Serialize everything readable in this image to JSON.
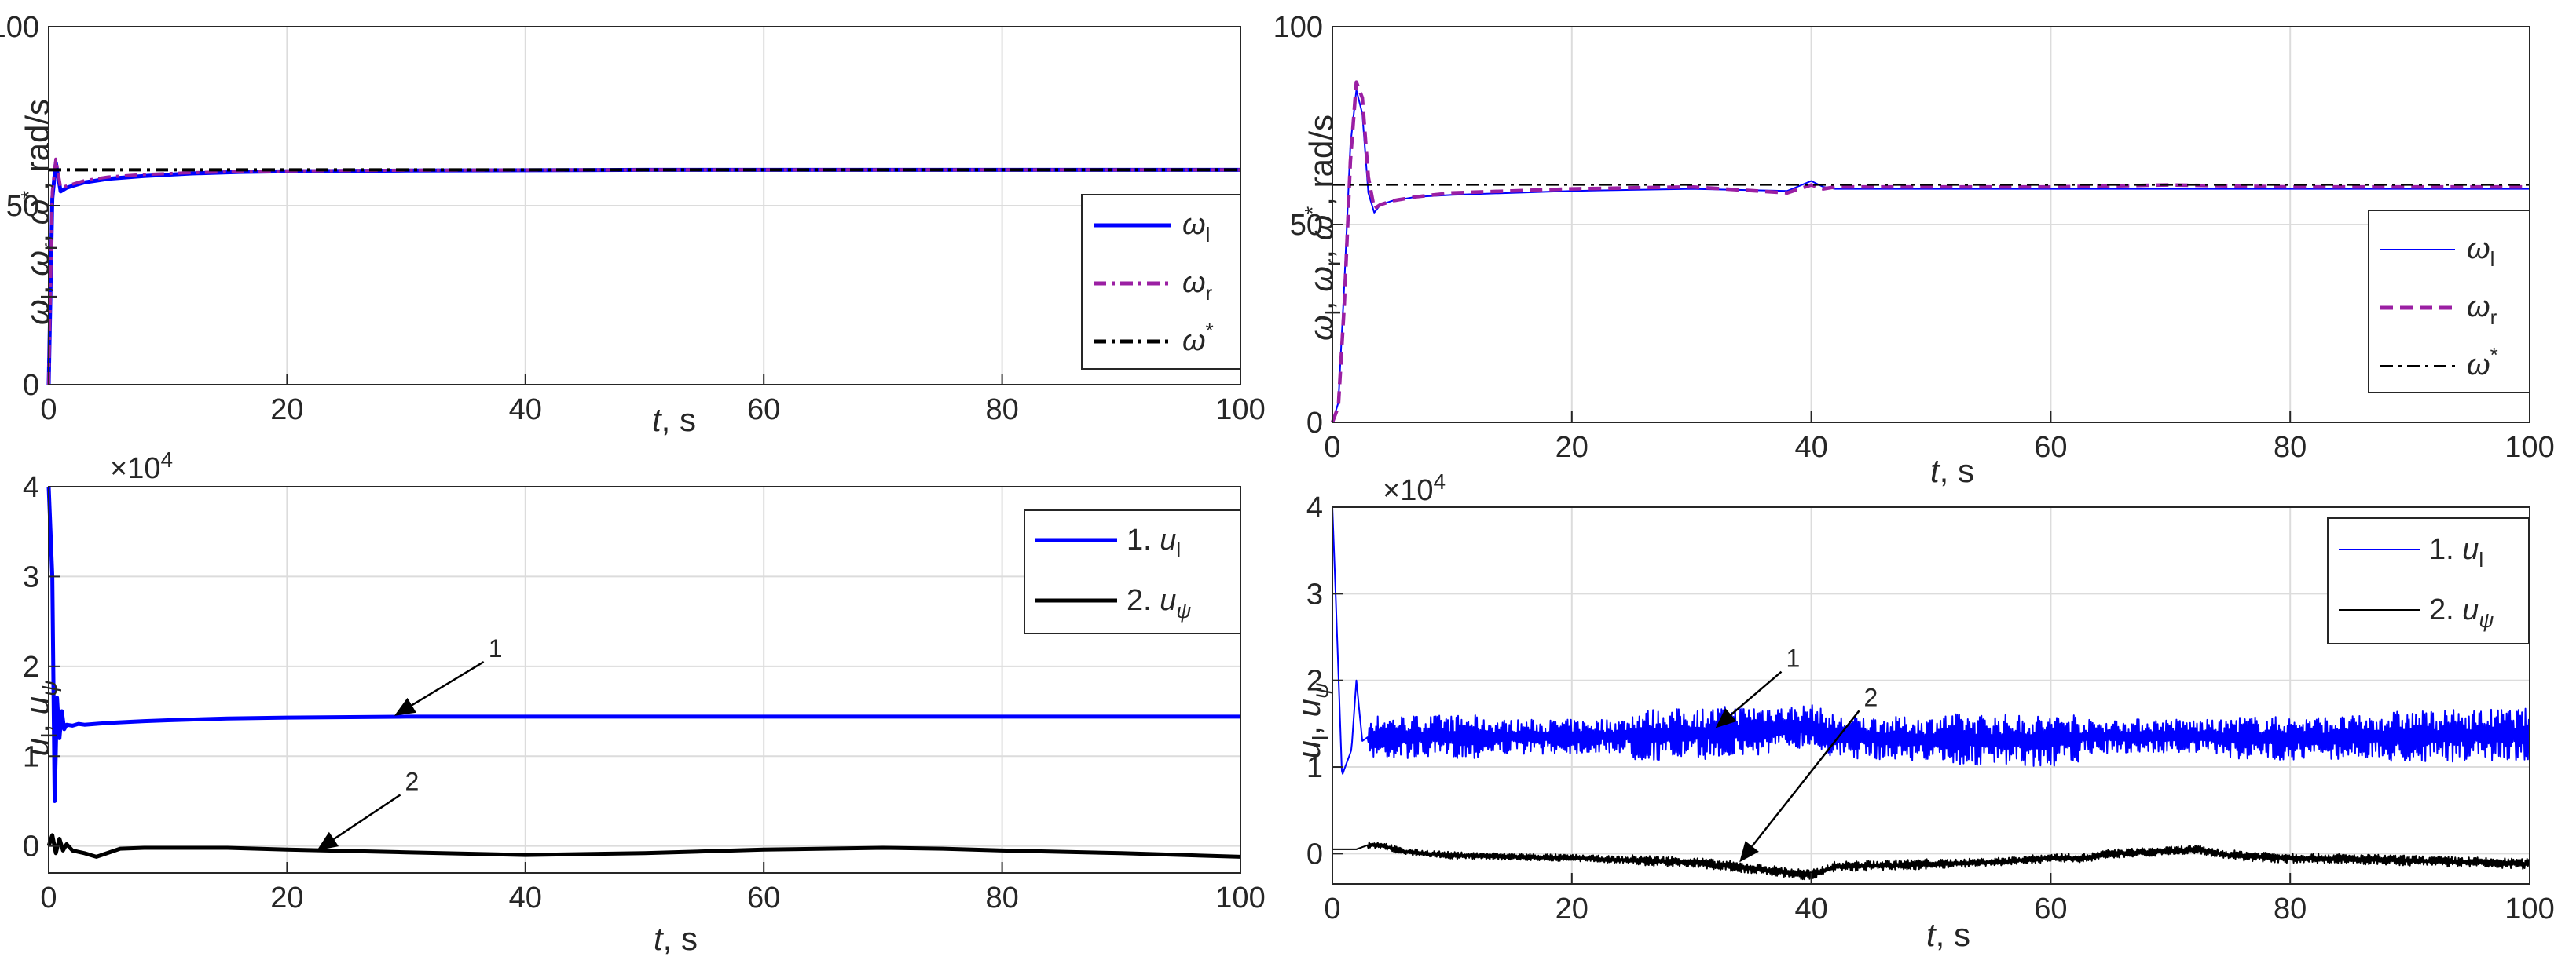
{
  "colors": {
    "blue": "#0000ff",
    "purple": "#9b1fa3",
    "black": "#000000",
    "grid": "#dcdcdc",
    "axis": "#262626"
  },
  "chart_data": [
    {
      "type": "line",
      "panel": "top-left",
      "xlabel": "t, s",
      "ylabel": "ω_l, ω_r, ω*, rad/s",
      "xlim": [
        0,
        100
      ],
      "ylim": [
        0,
        100
      ],
      "xticks": [
        "0",
        "20",
        "40",
        "60",
        "80",
        "100"
      ],
      "yticks": [
        "0",
        "50",
        "100"
      ],
      "grid": true,
      "legend_position": "right",
      "series": [
        {
          "name": "ω_l",
          "style": "solid",
          "color": "#0000ff",
          "x": [
            0,
            0.3,
            0.6,
            1,
            1.5,
            2,
            3,
            5,
            8,
            12,
            16,
            20,
            30,
            50,
            100
          ],
          "y": [
            0,
            52,
            62,
            54,
            55,
            55.5,
            56.5,
            57.5,
            58.3,
            59,
            59.4,
            59.6,
            59.8,
            60,
            60
          ]
        },
        {
          "name": "ω_r",
          "style": "dashdot",
          "color": "#9b1fa3",
          "x": [
            0,
            0.3,
            0.6,
            1,
            1.5,
            2,
            3,
            5,
            8,
            12,
            16,
            20,
            30,
            50,
            100
          ],
          "y": [
            0,
            54,
            63,
            55,
            55.5,
            56,
            57,
            58,
            58.7,
            59.2,
            59.5,
            59.7,
            59.9,
            60,
            60
          ]
        },
        {
          "name": "ω*",
          "style": "dashdot",
          "color": "#000000",
          "x": [
            0,
            100
          ],
          "y": [
            60,
            60
          ]
        }
      ]
    },
    {
      "type": "line",
      "panel": "top-right",
      "xlabel": "t, s",
      "ylabel": "ω_l, ω_r, ω*, rad/s",
      "xlim": [
        0,
        100
      ],
      "ylim": [
        0,
        100
      ],
      "xticks": [
        "0",
        "20",
        "40",
        "60",
        "80",
        "100"
      ],
      "yticks": [
        "0",
        "50",
        "100"
      ],
      "grid": true,
      "legend_position": "right",
      "series": [
        {
          "name": "ω_l",
          "style": "solid-thin",
          "color": "#0000ff",
          "x": [
            0,
            0.5,
            1,
            1.5,
            2,
            2.5,
            3,
            3.5,
            4,
            5,
            7,
            10,
            15,
            20,
            30,
            38,
            40,
            41,
            42,
            50,
            60,
            70,
            80,
            90,
            100
          ],
          "y": [
            0,
            5,
            35,
            70,
            84,
            78,
            58,
            53,
            55,
            56,
            57,
            57.5,
            58,
            58.5,
            59,
            58.5,
            61,
            59.5,
            59,
            59,
            59,
            59,
            59,
            59,
            59
          ]
        },
        {
          "name": "ω_r",
          "style": "dashed",
          "color": "#9b1fa3",
          "x": [
            0,
            0.5,
            1,
            1.5,
            2,
            2.5,
            3,
            3.5,
            4,
            5,
            7,
            10,
            15,
            20,
            30,
            38,
            40,
            41,
            42,
            50,
            60,
            70,
            80,
            90,
            100
          ],
          "y": [
            0,
            4,
            30,
            66,
            86,
            82,
            62,
            54,
            55,
            56,
            57,
            58,
            58.5,
            59,
            59.5,
            58,
            60,
            59,
            59.5,
            59.5,
            59.5,
            60,
            59.5,
            59.5,
            59.5
          ]
        },
        {
          "name": "ω*",
          "style": "dashdot-thin",
          "color": "#000000",
          "x": [
            0,
            100
          ],
          "y": [
            60,
            60
          ]
        }
      ]
    },
    {
      "type": "line",
      "panel": "bottom-left",
      "xlabel": "t, s",
      "ylabel": "u_l, u_ψ",
      "exponent_label": "×10^4",
      "xlim": [
        0,
        100
      ],
      "ylim": [
        -0.3,
        4
      ],
      "xticks": [
        "0",
        "20",
        "40",
        "60",
        "80",
        "100"
      ],
      "yticks": [
        "0",
        "1",
        "2",
        "3",
        "4"
      ],
      "grid": true,
      "legend_position": "top-right",
      "annotations": [
        {
          "label": "1",
          "x": 29,
          "y": 1.45,
          "text_x": 36.5,
          "text_y": 2.05
        },
        {
          "label": "2",
          "x": 22.5,
          "y": -0.05,
          "text_x": 29.5,
          "text_y": 0.57
        }
      ],
      "series": [
        {
          "name": "1. u_l",
          "style": "solid",
          "color": "#0000ff",
          "x": [
            0,
            0.3,
            0.5,
            0.7,
            0.9,
            1.1,
            1.3,
            1.5,
            2,
            2.5,
            3,
            5,
            8,
            10,
            15,
            20,
            30,
            40,
            60,
            80,
            100
          ],
          "y": [
            4,
            3,
            0.5,
            1.65,
            1.2,
            1.5,
            1.3,
            1.35,
            1.34,
            1.36,
            1.35,
            1.37,
            1.39,
            1.4,
            1.42,
            1.43,
            1.44,
            1.44,
            1.44,
            1.44,
            1.44
          ]
        },
        {
          "name": "2. u_ψ",
          "style": "solid",
          "color": "#000000",
          "x": [
            0,
            0.3,
            0.6,
            0.9,
            1.2,
            1.5,
            2,
            3,
            3.5,
            4,
            6,
            8,
            10,
            15,
            20,
            30,
            40,
            50,
            60,
            70,
            75,
            80,
            90,
            100
          ],
          "y": [
            0,
            0.12,
            -0.08,
            0.08,
            -0.05,
            0.02,
            -0.05,
            -0.08,
            -0.1,
            -0.12,
            -0.03,
            -0.02,
            -0.02,
            -0.02,
            -0.04,
            -0.07,
            -0.1,
            -0.08,
            -0.04,
            -0.02,
            -0.03,
            -0.05,
            -0.08,
            -0.12
          ]
        }
      ]
    },
    {
      "type": "line",
      "panel": "bottom-right",
      "xlabel": "t, s",
      "ylabel": "u_l, u_ψ",
      "exponent_label": "×10^4",
      "xlim": [
        0,
        100
      ],
      "ylim": [
        -0.35,
        4
      ],
      "xticks": [
        "0",
        "20",
        "40",
        "60",
        "80",
        "100"
      ],
      "yticks": [
        "0",
        "1",
        "2",
        "3",
        "4"
      ],
      "grid": true,
      "legend_position": "top-right",
      "annotations": [
        {
          "label": "1",
          "x": 32,
          "y": 1.45,
          "text_x": 37.5,
          "text_y": 2.1
        },
        {
          "label": "2",
          "x": 34,
          "y": -0.1,
          "text_x": 44,
          "text_y": 1.65
        }
      ],
      "series": [
        {
          "name": "1. u_l",
          "style": "solid-thin-noisy",
          "color": "#0000ff",
          "noise_amplitude": [
            0.25,
            0.2,
            0.3,
            0.25,
            0.3,
            0.2,
            0.25,
            0.3
          ],
          "x": [
            0,
            0.4,
            0.8,
            1.2,
            1.6,
            2,
            2.5,
            3,
            10,
            20,
            30,
            35,
            40,
            42,
            50,
            60,
            63,
            70,
            75,
            80,
            90,
            100
          ],
          "y": [
            4,
            2.5,
            0.9,
            1.05,
            1.2,
            2.0,
            1.3,
            1.35,
            1.35,
            1.35,
            1.38,
            1.42,
            1.48,
            1.35,
            1.32,
            1.3,
            1.35,
            1.36,
            1.34,
            1.33,
            1.35,
            1.38
          ]
        },
        {
          "name": "2. u_ψ",
          "style": "solid-thin-noisy",
          "color": "#000000",
          "noise_amplitude": [
            0.04,
            0.06,
            0.05,
            0.06
          ],
          "x": [
            0,
            2,
            3,
            4,
            6,
            10,
            20,
            30,
            35,
            40,
            42,
            45,
            55,
            60,
            63,
            65,
            70,
            72,
            75,
            80,
            90,
            100
          ],
          "y": [
            0.05,
            0.05,
            0.1,
            0.1,
            0.02,
            -0.02,
            -0.05,
            -0.1,
            -0.17,
            -0.25,
            -0.15,
            -0.14,
            -0.1,
            -0.05,
            -0.05,
            0,
            0.03,
            0.05,
            -0.02,
            -0.05,
            -0.08,
            -0.12
          ]
        }
      ]
    }
  ]
}
